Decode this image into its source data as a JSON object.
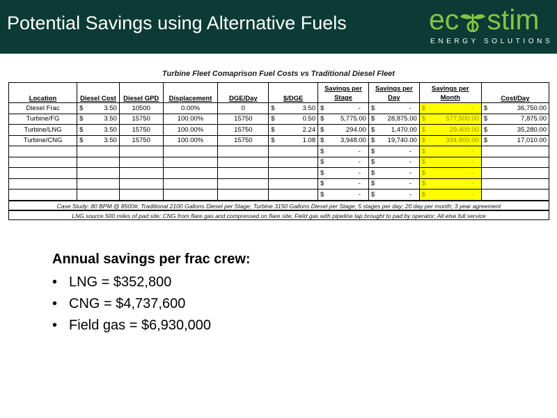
{
  "title": "Potential Savings using Alternative Fuels",
  "logo": {
    "text_left": "ec",
    "text_right": "stim",
    "tagline": "ENERGY SOLUTIONS",
    "brand_color": "#84c441"
  },
  "table": {
    "title": "Turbine Fleet Comaprison Fuel Costs vs Traditional Diesel Fleet",
    "headers": [
      "Location",
      "Diesel Cost",
      "Diesel GPD",
      "Displacement",
      "DGE/Day",
      "$/DGE",
      "Savings per Stage",
      "Savings per Day",
      "Savings per Month",
      "Cost/Day"
    ],
    "rows": [
      {
        "location": "Diesel Frac",
        "diesel_cost": "3.50",
        "diesel_gpd": "10500",
        "displacement": "0.00%",
        "dge_day": "0",
        "per_dge": "3.50",
        "savings_stage": "-",
        "savings_day": "-",
        "savings_month": "-",
        "cost_day": "36,750.00"
      },
      {
        "location": "Turbine/FG",
        "diesel_cost": "3.50",
        "diesel_gpd": "15750",
        "displacement": "100.00%",
        "dge_day": "15750",
        "per_dge": "0.50",
        "savings_stage": "5,775.00",
        "savings_day": "28,875.00",
        "savings_month": "577,500.00",
        "cost_day": "7,875.00"
      },
      {
        "location": "Turbine/LNG",
        "diesel_cost": "3.50",
        "diesel_gpd": "15750",
        "displacement": "100.00%",
        "dge_day": "15750",
        "per_dge": "2.24",
        "savings_stage": "294.00",
        "savings_day": "1,470.00",
        "savings_month": "29,400.00",
        "cost_day": "35,280.00"
      },
      {
        "location": "Turbine/CNG",
        "diesel_cost": "3.50",
        "diesel_gpd": "15750",
        "displacement": "100.00%",
        "dge_day": "15750",
        "per_dge": "1.08",
        "savings_stage": "3,948.00",
        "savings_day": "19,740.00",
        "savings_month": "394,800.00",
        "cost_day": "17,010.00"
      }
    ],
    "empty_rows": 5,
    "currency_symbol": "$",
    "dash": "-",
    "highlight_color": "#ffff00",
    "notes": [
      "Case Study: 80 BPM @ 8500#; Traditional 2100 Gallons Diesel per Stage; Turbine 3150 Gallons Diesel per Stage; 5 stages per day; 20 day per month; 3 year agreement",
      "LNG source 500 miles of pad site; CNG from flare gas and compressed on flare site; Field gas with pipeline tap brought to pad by operator; All else full service"
    ]
  },
  "annual_savings": {
    "heading": "Annual savings per frac crew:",
    "items": [
      "LNG = $352,800",
      "CNG = $4,737,600",
      "Field gas = $6,930,000"
    ]
  },
  "colors": {
    "header_bg": "#0c3b36",
    "header_text": "#ffffff"
  }
}
